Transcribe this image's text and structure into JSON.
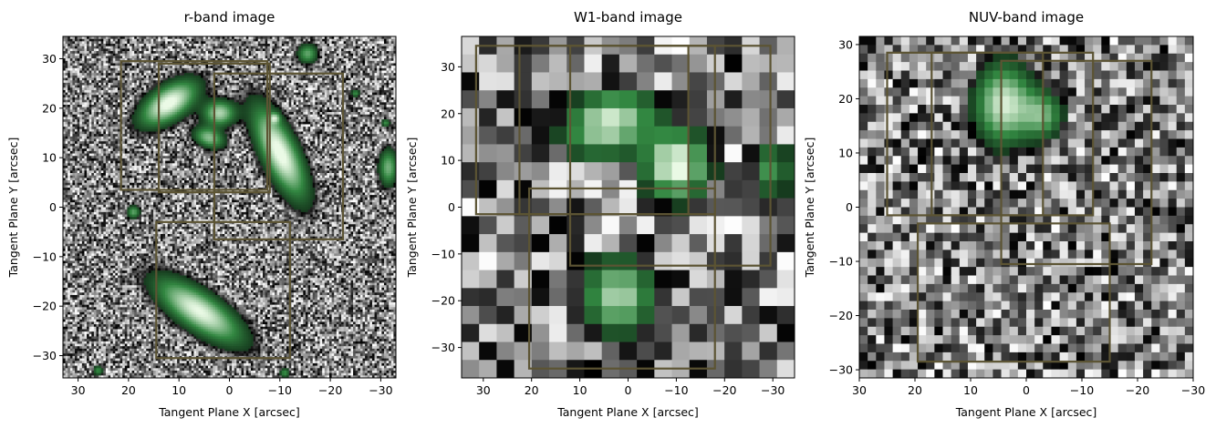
{
  "chart_data": [
    {
      "type": "heatmap",
      "title": "r-band image",
      "xlabel": "Tangent Plane X [arcsec]",
      "ylabel": "Tangent Plane Y [arcsec]",
      "xlim": [
        33,
        -33
      ],
      "ylim": [
        -34.5,
        34.5
      ],
      "xticks": [
        30,
        20,
        10,
        0,
        -10,
        -20,
        -30
      ],
      "yticks": [
        -30,
        -20,
        -10,
        0,
        10,
        20,
        30
      ],
      "noise_cells": 140,
      "sources": [
        {
          "x": 12,
          "y": 21,
          "sx": 4.5,
          "sy": 2.3,
          "angle": -35,
          "peak": 1.0
        },
        {
          "x": 2,
          "y": 19,
          "sx": 2.2,
          "sy": 1.8,
          "angle": 0,
          "peak": 0.8
        },
        {
          "x": 4,
          "y": 14,
          "sx": 2.2,
          "sy": 1.4,
          "angle": 20,
          "peak": 0.7
        },
        {
          "x": -10,
          "y": 11,
          "sx": 2.4,
          "sy": 7,
          "angle": -25,
          "peak": 1.0
        },
        {
          "x": 6,
          "y": -21,
          "sx": 2.6,
          "sy": 7,
          "angle": -55,
          "peak": 0.95
        },
        {
          "x": -15.5,
          "y": 31,
          "sx": 1.4,
          "sy": 1.4,
          "angle": 0,
          "peak": 0.6
        },
        {
          "x": -31.5,
          "y": 8,
          "sx": 1.3,
          "sy": 2.6,
          "angle": 0,
          "peak": 0.65
        },
        {
          "x": 19,
          "y": -1,
          "sx": 0.9,
          "sy": 0.9,
          "angle": 0,
          "peak": 0.6
        },
        {
          "x": -9,
          "y": 18,
          "sx": 0.7,
          "sy": 0.7,
          "angle": 0,
          "peak": 0.5
        },
        {
          "x": -25,
          "y": 23,
          "sx": 0.6,
          "sy": 0.6,
          "angle": 0,
          "peak": 0.5
        },
        {
          "x": -31,
          "y": 17,
          "sx": 0.6,
          "sy": 0.6,
          "angle": 0,
          "peak": 0.5
        },
        {
          "x": -11,
          "y": -33.5,
          "sx": 0.7,
          "sy": 0.7,
          "angle": 0,
          "peak": 0.5
        },
        {
          "x": 26,
          "y": -33,
          "sx": 0.7,
          "sy": 0.7,
          "angle": 0,
          "peak": 0.5
        }
      ],
      "boxes": [
        {
          "x0": 21.5,
          "x1": -7.5,
          "y0": 3.5,
          "y1": 29.5
        },
        {
          "x0": 14,
          "x1": -8,
          "y0": 3,
          "y1": 29
        },
        {
          "x0": 3,
          "x1": -22.5,
          "y0": -6.5,
          "y1": 27
        },
        {
          "x0": 14.5,
          "x1": -12,
          "y0": -30.5,
          "y1": -3
        }
      ]
    },
    {
      "type": "heatmap",
      "title": "W1-band image",
      "xlabel": "Tangent Plane X [arcsec]",
      "ylabel": "Tangent Plane Y [arcsec]",
      "xlim": [
        34.5,
        -34.5
      ],
      "ylim": [
        -36.5,
        36.5
      ],
      "xticks": [
        30,
        20,
        10,
        0,
        -10,
        -20,
        -30
      ],
      "yticks": [
        -30,
        -20,
        -10,
        0,
        10,
        20,
        30
      ],
      "noise_cells": 19,
      "sources": [
        {
          "x": 4,
          "y": 18,
          "sx": 6.5,
          "sy": 4.5,
          "angle": -20,
          "peak": 0.9
        },
        {
          "x": -10,
          "y": 9,
          "sx": 4.5,
          "sy": 5,
          "angle": 0,
          "peak": 1.0
        },
        {
          "x": 2,
          "y": -19,
          "sx": 5,
          "sy": 5.5,
          "angle": 0,
          "peak": 0.8
        },
        {
          "x": -30,
          "y": 8,
          "sx": 2.5,
          "sy": 4,
          "angle": 0,
          "peak": 0.55
        }
      ],
      "boxes": [
        {
          "x0": 31.5,
          "x1": -12.5,
          "y0": -1.5,
          "y1": 34.5
        },
        {
          "x0": 22.5,
          "x1": -18,
          "y0": -1.5,
          "y1": 34.5
        },
        {
          "x0": 12,
          "x1": -29.5,
          "y0": -12.5,
          "y1": 34.5
        },
        {
          "x0": 20.5,
          "x1": -18,
          "y0": -34.5,
          "y1": 4
        }
      ]
    },
    {
      "type": "heatmap",
      "title": "NUV-band image",
      "xlabel": "Tangent Plane X [arcsec]",
      "ylabel": "Tangent Plane Y [arcsec]",
      "xlim": [
        30,
        -30
      ],
      "ylim": [
        -31.5,
        31.5
      ],
      "xticks": [
        30,
        20,
        10,
        0,
        -10,
        -20,
        -30
      ],
      "yticks": [
        -30,
        -20,
        -10,
        0,
        10,
        20,
        30
      ],
      "noise_cells": 40,
      "sources": [
        {
          "x": 4,
          "y": 19,
          "sx": 3.5,
          "sy": 5,
          "angle": 0,
          "peak": 0.9
        },
        {
          "x": -3,
          "y": 17,
          "sx": 2.5,
          "sy": 3,
          "angle": 0,
          "peak": 0.6
        }
      ],
      "boxes": [
        {
          "x0": 25,
          "x1": -12,
          "y0": -1.5,
          "y1": 28.5
        },
        {
          "x0": 17,
          "x1": -3,
          "y0": -1.5,
          "y1": 28.5
        },
        {
          "x0": 4.5,
          "x1": -22.5,
          "y0": -10.5,
          "y1": 27
        },
        {
          "x0": 19.5,
          "x1": -15,
          "y0": -28.5,
          "y1": -3
        }
      ]
    }
  ]
}
